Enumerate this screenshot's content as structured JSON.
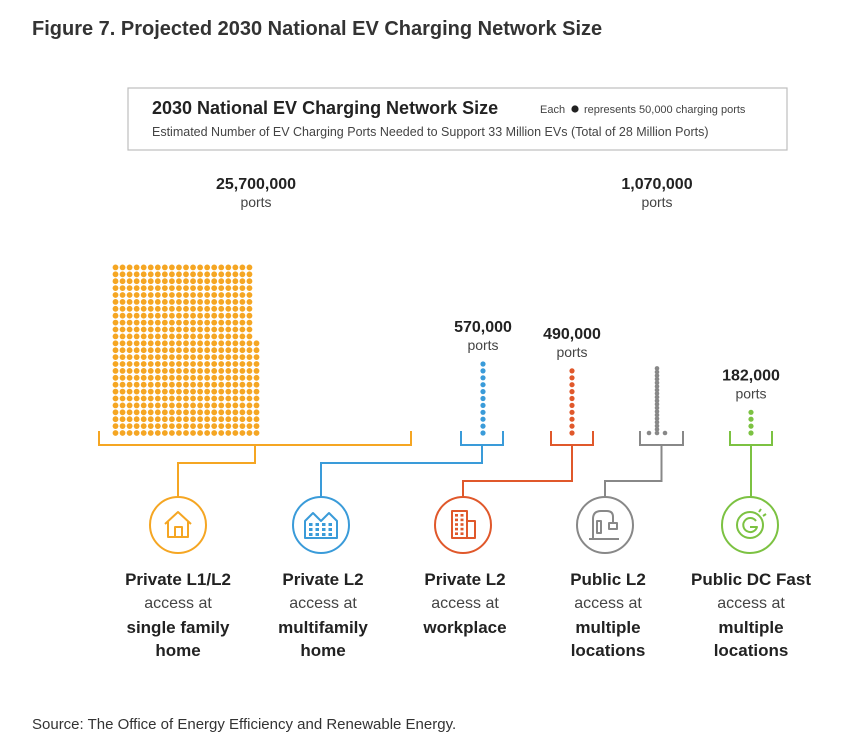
{
  "figure_title": "Figure 7. Projected 2030 National EV Charging Network Size",
  "source": "Source: The Office of Energy Efficiency and Renewable Energy.",
  "chart_data": {
    "type": "bar",
    "title": "2030 National EV Charging Network Size",
    "subtitle": "Estimated Number of EV Charging Ports Needed to Support 33 Million EVs (Total of 28 Million Ports)",
    "legend": {
      "prefix": "Each",
      "suffix": "represents 50,000 charging ports",
      "dot_value": 50000
    },
    "unit_label": "ports",
    "categories": [
      {
        "id": "private-l1l2-single-family",
        "line1": "Private L1/L2",
        "line2": "access at",
        "line3": "single family",
        "line4": "home",
        "value": 25700000,
        "value_label": "25,700,000",
        "color": "#f5a623",
        "icon": "house-icon"
      },
      {
        "id": "private-l2-multifamily",
        "line1": "Private L2",
        "line2": "access at",
        "line3": "multifamily",
        "line4": "home",
        "value": 570000,
        "value_label": "570,000",
        "color": "#3a9bd9",
        "icon": "apartment-icon"
      },
      {
        "id": "private-l2-workplace",
        "line1": "Private L2",
        "line2": "access at",
        "line3": "workplace",
        "line4": "",
        "value": 490000,
        "value_label": "490,000",
        "color": "#e0582b",
        "icon": "office-building-icon"
      },
      {
        "id": "public-l2",
        "line1": "Public L2",
        "line2": "access at",
        "line3": "multiple",
        "line4": "locations",
        "value": 1070000,
        "value_label": "1,070,000",
        "color": "#888888",
        "icon": "charging-station-icon"
      },
      {
        "id": "public-dc-fast",
        "line1": "Public DC Fast",
        "line2": "access at",
        "line3": "multiple",
        "line4": "locations",
        "value": 182000,
        "value_label": "182,000",
        "color": "#7cc242",
        "icon": "fast-charge-icon"
      }
    ]
  }
}
